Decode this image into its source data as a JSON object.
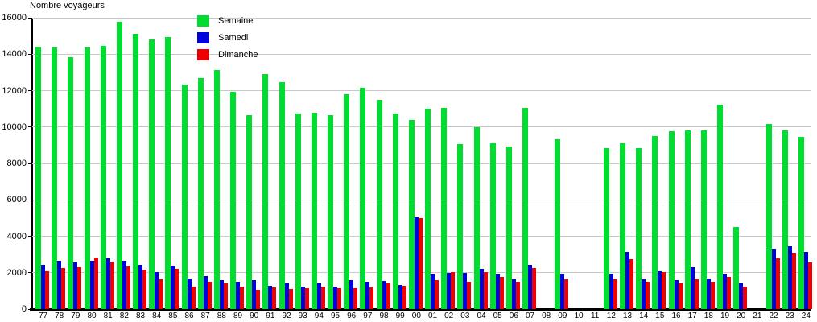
{
  "chart_data": {
    "type": "bar",
    "title": "Nombre voyageurs",
    "categories": [
      "77",
      "78",
      "79",
      "80",
      "81",
      "82",
      "83",
      "84",
      "85",
      "86",
      "87",
      "88",
      "89",
      "90",
      "91",
      "92",
      "93",
      "94",
      "95",
      "96",
      "97",
      "98",
      "99",
      "00",
      "01",
      "02",
      "03",
      "04",
      "05",
      "06",
      "07",
      "08",
      "09",
      "10",
      "11",
      "12",
      "13",
      "14",
      "15",
      "16",
      "17",
      "18",
      "19",
      "20",
      "21",
      "22",
      "23",
      "24"
    ],
    "series": [
      {
        "name": "Semaine",
        "color": "#00dc30",
        "values": [
          14400,
          14350,
          13850,
          14350,
          14450,
          15800,
          15100,
          14800,
          14950,
          12350,
          12700,
          13150,
          11950,
          10650,
          12900,
          12450,
          10750,
          10800,
          10650,
          11800,
          12150,
          11500,
          10750,
          10400,
          11000,
          11050,
          9050,
          10000,
          9100,
          8950,
          11050,
          null,
          9350,
          null,
          null,
          8850,
          9100,
          8850,
          9500,
          9750,
          9800,
          9800,
          11250,
          4500,
          null,
          10150,
          9800,
          9450
        ]
      },
      {
        "name": "Samedi",
        "color": "#0000dc",
        "values": [
          2450,
          2650,
          2550,
          2650,
          2800,
          2650,
          2450,
          2050,
          2400,
          1700,
          1800,
          1600,
          1500,
          1600,
          1300,
          1400,
          1250,
          1400,
          1250,
          1600,
          1500,
          1550,
          1350,
          5050,
          1950,
          2000,
          1980,
          2200,
          1950,
          1650,
          2450,
          null,
          1950,
          null,
          null,
          1950,
          3150,
          1650,
          2100,
          1600,
          2300,
          1700,
          1950,
          1400,
          null,
          3300,
          3450,
          3150
        ]
      },
      {
        "name": "Dimanche",
        "color": "#ee0000",
        "values": [
          2100,
          2250,
          2300,
          2850,
          2600,
          2350,
          2150,
          1650,
          2200,
          1250,
          1500,
          1400,
          1250,
          1050,
          1200,
          1100,
          1150,
          1250,
          1150,
          1150,
          1200,
          1400,
          1300,
          4980,
          1600,
          2050,
          1500,
          2050,
          1750,
          1520,
          2250,
          null,
          1650,
          null,
          null,
          1650,
          2750,
          1500,
          2050,
          1400,
          1650,
          1500,
          1750,
          1250,
          null,
          2800,
          3100,
          2550
        ]
      }
    ],
    "ylim": [
      0,
      16000
    ],
    "ytick_step": 2000,
    "xlabel": "",
    "ylabel": "Nombre voyageurs",
    "grid": true,
    "legend_position": "top-left-inside"
  }
}
